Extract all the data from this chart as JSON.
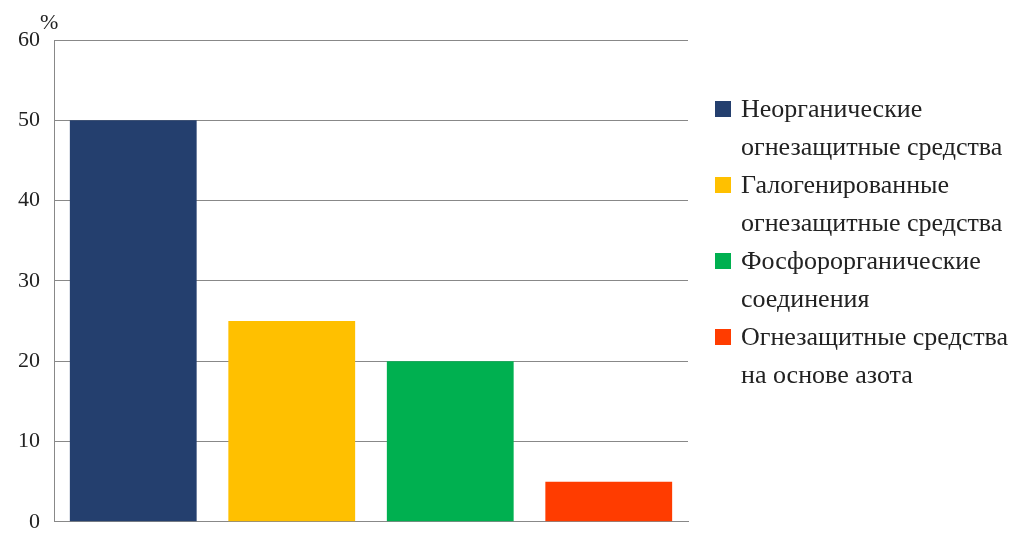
{
  "chart_data": {
    "type": "bar",
    "ylabel": "%",
    "categories": [
      null,
      null,
      null,
      null
    ],
    "series": [
      {
        "name": "Неорганические огнезащитные средства",
        "color": "#243f6e",
        "values": [
          50,
          null,
          null,
          null
        ]
      },
      {
        "name": "Галогенированные огнезащитные средства",
        "color": "#ffc000",
        "values": [
          null,
          25,
          null,
          null
        ]
      },
      {
        "name": "Фосфорорганические соединения",
        "color": "#00b050",
        "values": [
          null,
          null,
          20,
          null
        ]
      },
      {
        "name": "Огнезащитные средства на основе азота",
        "color": "#ff3c00",
        "values": [
          null,
          null,
          null,
          5
        ]
      }
    ],
    "ylim": [
      0,
      60
    ],
    "yticks": [
      0,
      10,
      20,
      30,
      40,
      50,
      60
    ],
    "grid": "y",
    "legend": "right"
  }
}
